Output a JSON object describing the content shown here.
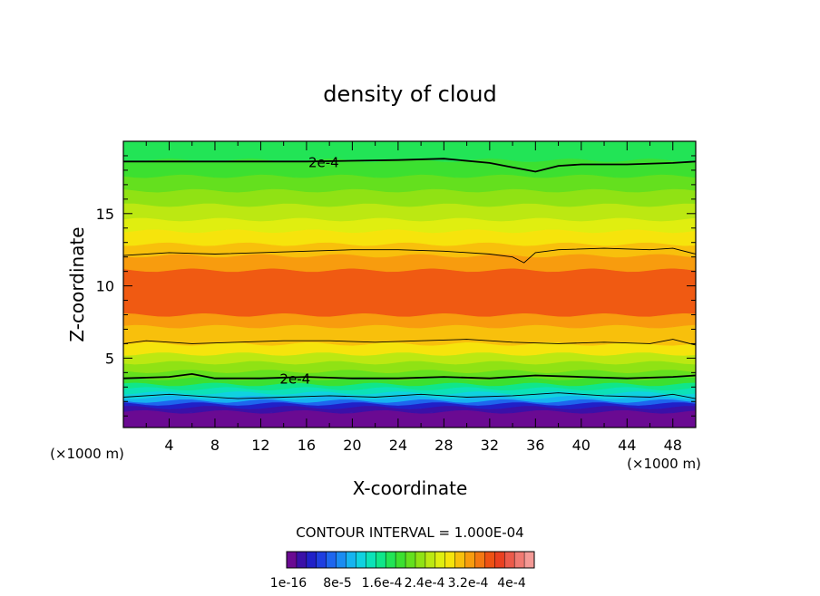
{
  "chart_data": {
    "type": "heatmap",
    "title": "density of cloud",
    "xlabel": "X-coordinate",
    "ylabel": "Z-coordinate",
    "x_unit_label_left": "(×1000 m)",
    "x_unit_label_right": "(×1000 m)",
    "xlim": [
      0,
      50
    ],
    "ylim": [
      0.2,
      20
    ],
    "x_ticks": [
      4,
      8,
      12,
      16,
      20,
      24,
      28,
      32,
      36,
      40,
      44,
      48
    ],
    "y_ticks": [
      5,
      10,
      15
    ],
    "contour_interval_text": "CONTOUR INTERVAL = 1.000E-04",
    "contour_labels": [
      {
        "text": "2e-4",
        "x": 17.5,
        "z": 18.6
      },
      {
        "text": "2e-4",
        "x": 15,
        "z": 3.6
      }
    ],
    "colorbar": {
      "labels": [
        "1e-16",
        "8e-5",
        "1.6e-4",
        "2.4e-4",
        "3.2e-4",
        "4e-4"
      ],
      "colors": [
        "#6a0a92",
        "#3a10a8",
        "#2020c8",
        "#1f3ee0",
        "#1e66ee",
        "#1a8cf2",
        "#16b4f0",
        "#10d2e0",
        "#0ce2b8",
        "#10e68a",
        "#22e456",
        "#3ce030",
        "#64e01e",
        "#90e214",
        "#bce812",
        "#e0ee10",
        "#f6e40c",
        "#f8c00c",
        "#f89c0e",
        "#f47812",
        "#ee5214",
        "#ea4020",
        "#ec5a4a",
        "#f07a72",
        "#f49a96"
      ]
    },
    "bands": [
      {
        "z0": 0.9,
        "z1": 1.3,
        "color": "#6a0a92"
      },
      {
        "z0": 1.3,
        "z1": 1.6,
        "color": "#3a10a8"
      },
      {
        "z0": 1.6,
        "z1": 1.85,
        "color": "#2020c8"
      },
      {
        "z0": 1.85,
        "z1": 2.05,
        "color": "#1e66ee"
      },
      {
        "z0": 2.05,
        "z1": 2.3,
        "color": "#16b4f0"
      },
      {
        "z0": 2.3,
        "z1": 2.6,
        "color": "#10d2e0"
      },
      {
        "z0": 2.6,
        "z1": 2.9,
        "color": "#0ce2b8"
      },
      {
        "z0": 2.9,
        "z1": 3.2,
        "color": "#10e68a"
      },
      {
        "z0": 3.2,
        "z1": 3.6,
        "color": "#3ce030"
      },
      {
        "z0": 3.6,
        "z1": 4.1,
        "color": "#64e01e"
      },
      {
        "z0": 4.1,
        "z1": 4.7,
        "color": "#90e214"
      },
      {
        "z0": 4.7,
        "z1": 5.3,
        "color": "#bce812"
      },
      {
        "z0": 5.3,
        "z1": 6.0,
        "color": "#f6e40c"
      },
      {
        "z0": 6.0,
        "z1": 7.2,
        "color": "#f8c00c"
      },
      {
        "z0": 7.2,
        "z1": 8.0,
        "color": "#f89c0e"
      },
      {
        "z0": 8.0,
        "z1": 11.1,
        "color": "#f05a12"
      },
      {
        "z0": 11.1,
        "z1": 12.1,
        "color": "#f89c0e"
      },
      {
        "z0": 12.1,
        "z1": 12.9,
        "color": "#f8c00c"
      },
      {
        "z0": 12.9,
        "z1": 13.8,
        "color": "#f6e40c"
      },
      {
        "z0": 13.8,
        "z1": 14.6,
        "color": "#e0ee10"
      },
      {
        "z0": 14.6,
        "z1": 15.6,
        "color": "#bce812"
      },
      {
        "z0": 15.6,
        "z1": 16.6,
        "color": "#90e214"
      },
      {
        "z0": 16.6,
        "z1": 17.6,
        "color": "#64e01e"
      },
      {
        "z0": 17.6,
        "z1": 18.7,
        "color": "#3ce030"
      },
      {
        "z0": 18.7,
        "z1": 20.0,
        "color": "#22e456"
      }
    ],
    "contours": [
      {
        "points": [
          [
            0,
            18.6
          ],
          [
            8,
            18.6
          ],
          [
            16,
            18.6
          ],
          [
            20,
            18.65
          ],
          [
            24,
            18.7
          ],
          [
            28,
            18.8
          ],
          [
            32,
            18.5
          ],
          [
            34,
            18.2
          ],
          [
            36,
            17.9
          ],
          [
            38,
            18.3
          ],
          [
            40,
            18.4
          ],
          [
            44,
            18.4
          ],
          [
            48,
            18.5
          ],
          [
            50,
            18.6
          ]
        ],
        "weight": "thick"
      },
      {
        "points": [
          [
            0,
            12.1
          ],
          [
            4,
            12.3
          ],
          [
            8,
            12.2
          ],
          [
            12,
            12.3
          ],
          [
            16,
            12.4
          ],
          [
            20,
            12.5
          ],
          [
            24,
            12.5
          ],
          [
            28,
            12.4
          ],
          [
            32,
            12.2
          ],
          [
            34,
            12.0
          ],
          [
            35,
            11.6
          ],
          [
            36,
            12.3
          ],
          [
            38,
            12.5
          ],
          [
            42,
            12.6
          ],
          [
            46,
            12.5
          ],
          [
            48,
            12.6
          ],
          [
            50,
            12.2
          ]
        ],
        "weight": "thin"
      },
      {
        "points": [
          [
            0,
            6.0
          ],
          [
            2,
            6.2
          ],
          [
            6,
            6.0
          ],
          [
            10,
            6.1
          ],
          [
            14,
            6.2
          ],
          [
            18,
            6.2
          ],
          [
            22,
            6.1
          ],
          [
            26,
            6.2
          ],
          [
            30,
            6.3
          ],
          [
            34,
            6.1
          ],
          [
            38,
            6.0
          ],
          [
            42,
            6.1
          ],
          [
            46,
            6.0
          ],
          [
            48,
            6.3
          ],
          [
            50,
            5.9
          ]
        ],
        "weight": "thin"
      },
      {
        "points": [
          [
            0,
            3.6
          ],
          [
            4,
            3.7
          ],
          [
            6,
            3.9
          ],
          [
            8,
            3.6
          ],
          [
            12,
            3.6
          ],
          [
            16,
            3.7
          ],
          [
            20,
            3.6
          ],
          [
            24,
            3.6
          ],
          [
            28,
            3.7
          ],
          [
            32,
            3.6
          ],
          [
            36,
            3.8
          ],
          [
            40,
            3.7
          ],
          [
            44,
            3.6
          ],
          [
            48,
            3.7
          ],
          [
            50,
            3.8
          ]
        ],
        "weight": "thick"
      },
      {
        "points": [
          [
            0,
            2.3
          ],
          [
            4,
            2.5
          ],
          [
            6,
            2.4
          ],
          [
            10,
            2.2
          ],
          [
            14,
            2.3
          ],
          [
            18,
            2.4
          ],
          [
            22,
            2.3
          ],
          [
            26,
            2.5
          ],
          [
            30,
            2.3
          ],
          [
            34,
            2.4
          ],
          [
            38,
            2.6
          ],
          [
            42,
            2.4
          ],
          [
            46,
            2.3
          ],
          [
            48,
            2.5
          ],
          [
            50,
            2.2
          ]
        ],
        "weight": "thin"
      }
    ]
  }
}
